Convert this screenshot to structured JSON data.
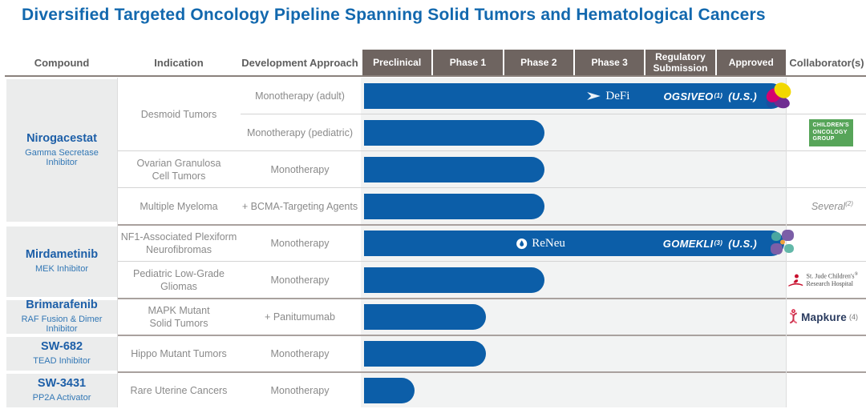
{
  "title": "Diversified Targeted Oncology Pipeline Spanning Solid Tumors and Hematological Cancers",
  "headers": {
    "compound": "Compound",
    "indication": "Indication",
    "approach": "Development Approach",
    "phases": [
      "Preclinical",
      "Phase 1",
      "Phase 2",
      "Phase 3",
      "Regulatory Submission",
      "Approved"
    ],
    "collaborators": "Collaborator(s)"
  },
  "groups": [
    {
      "compound": "Nirogacestat",
      "mechanism": "Gamma Secretase Inhibitor"
    },
    {
      "compound": "Mirdametinib",
      "mechanism": "MEK Inhibitor"
    },
    {
      "compound": "Brimarafenib",
      "mechanism": "RAF Fusion & Dimer Inhibitor"
    },
    {
      "compound": "SW-682",
      "mechanism": "TEAD Inhibitor"
    },
    {
      "compound": "SW-3431",
      "mechanism": "PP2A Activator"
    }
  ],
  "indications": [
    {
      "lines": [
        "Desmoid Tumors",
        ""
      ]
    },
    {
      "lines": [
        "Ovarian Granulosa",
        "Cell Tumors"
      ]
    },
    {
      "lines": [
        "Multiple Myeloma",
        ""
      ]
    },
    {
      "lines": [
        "NF1-Associated Plexiform",
        "Neurofibromas"
      ]
    },
    {
      "lines": [
        "Pediatric Low-Grade",
        "Gliomas"
      ]
    },
    {
      "lines": [
        "MAPK Mutant",
        "Solid Tumors"
      ]
    },
    {
      "lines": [
        "Hippo Mutant Tumors",
        ""
      ]
    },
    {
      "lines": [
        "Rare Uterine Cancers",
        ""
      ]
    }
  ],
  "chart_data": {
    "type": "bar",
    "orientation": "horizontal",
    "x_categories": [
      "Preclinical",
      "Phase 1",
      "Phase 2",
      "Phase 3",
      "Regulatory Submission",
      "Approved"
    ],
    "rows": [
      {
        "compound": "Nirogacestat",
        "indication": "Desmoid Tumors",
        "approach": "Monotherapy (adult)",
        "phase_reached": "Approved",
        "progress_pct": 100,
        "bar": {
          "trial": "DeFi",
          "brand": "OGSIVEO",
          "footnote": "(1)",
          "region": "(U.S.)"
        }
      },
      {
        "compound": "Nirogacestat",
        "indication": "Desmoid Tumors",
        "approach": "Monotherapy (pediatric)",
        "phase_reached": "Phase 2",
        "progress_pct": 43,
        "collaborator": {
          "badge_lines": [
            "CHILDREN'S",
            "ONCOLOGY",
            "GROUP"
          ]
        }
      },
      {
        "compound": "Nirogacestat",
        "indication": "Ovarian Granulosa Cell Tumors",
        "approach": "Monotherapy",
        "phase_reached": "Phase 2",
        "progress_pct": 43
      },
      {
        "compound": "Nirogacestat",
        "indication": "Multiple Myeloma",
        "approach": "+ BCMA-Targeting Agents",
        "phase_reached": "Phase 2",
        "progress_pct": 43,
        "collaborator": {
          "text": "Several",
          "footnote": "(2)"
        }
      },
      {
        "compound": "Mirdametinib",
        "indication": "NF1-Associated Plexiform Neurofibromas",
        "approach": "Monotherapy",
        "phase_reached": "Approved",
        "progress_pct": 100,
        "bar": {
          "trial": "ReNeu",
          "brand": "GOMEKLI",
          "footnote": "(3)",
          "region": "(U.S.)"
        }
      },
      {
        "compound": "Mirdametinib",
        "indication": "Pediatric Low-Grade Gliomas",
        "approach": "Monotherapy",
        "phase_reached": "Phase 2",
        "progress_pct": 43,
        "collaborator": {
          "logo": "st-jude",
          "lines": [
            "St. Jude Children's",
            "Research Hospital"
          ],
          "reg": "®"
        }
      },
      {
        "compound": "Brimarafenib",
        "indication": "MAPK Mutant Solid Tumors",
        "approach": "+ Panitumumab",
        "phase_reached": "Phase 1",
        "progress_pct": 29,
        "collaborator": {
          "logo": "mapkure",
          "text": "Mapkure",
          "footnote": "(4)"
        }
      },
      {
        "compound": "SW-682",
        "indication": "Hippo Mutant Tumors",
        "approach": "Monotherapy",
        "phase_reached": "Phase 1",
        "progress_pct": 29
      },
      {
        "compound": "SW-3431",
        "indication": "Rare Uterine Cancers",
        "approach": "Monotherapy",
        "phase_reached": "Preclinical",
        "progress_pct": 12
      }
    ]
  },
  "colors": {
    "title_blue": "#1268ae",
    "bar_blue": "#0c5ea8",
    "phase_header_gray": "#6e6460",
    "compound_blue": "#1d5fa8",
    "cog_green": "#57a559",
    "st_jude_red": "#c8102e",
    "gomekli_teal": "#4aa6a1",
    "gomekli_purple": "#7b5ea7",
    "ogsiveo_yellow": "#f2d800",
    "ogsiveo_magenta": "#d4006e",
    "ogsiveo_purple": "#6f2c91"
  }
}
